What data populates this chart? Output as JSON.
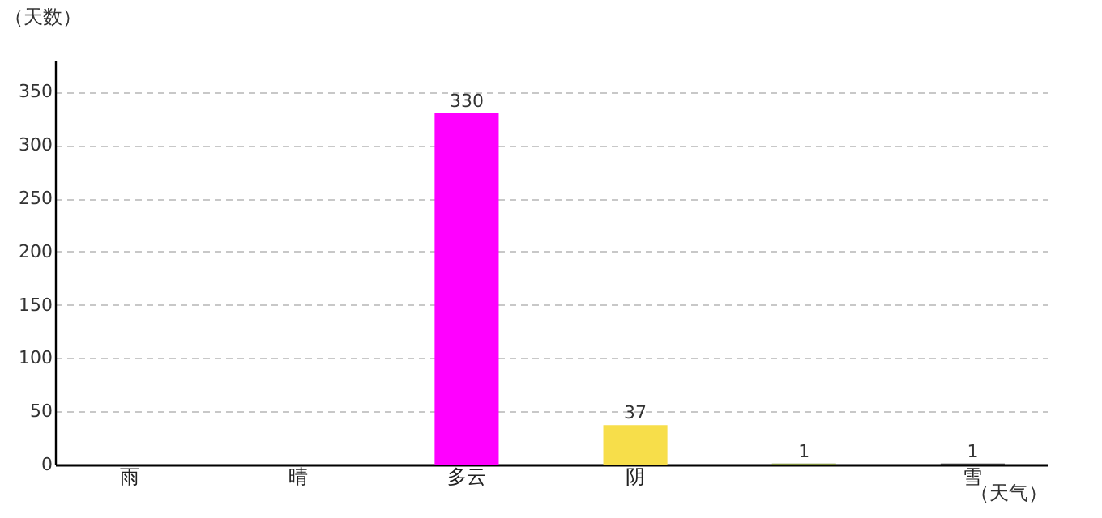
{
  "chart_data": {
    "type": "bar",
    "xlabel": "（天气）",
    "ylabel": "（天数）",
    "categories": [
      "雨",
      "晴",
      "多云",
      "阴",
      null,
      "雪"
    ],
    "values": [
      null,
      null,
      330,
      37,
      1,
      1
    ],
    "colors": [
      "#5a24a0",
      "#835f80",
      "#ff00ff",
      "#f7de4a",
      "#7a8a3a",
      "#333333"
    ],
    "value_labels": [
      null,
      null,
      "330",
      "37",
      "1",
      "1"
    ],
    "ylim": [
      0,
      380
    ],
    "yticks": [
      0,
      50,
      100,
      150,
      200,
      250,
      300,
      350
    ],
    "grid": "y"
  }
}
